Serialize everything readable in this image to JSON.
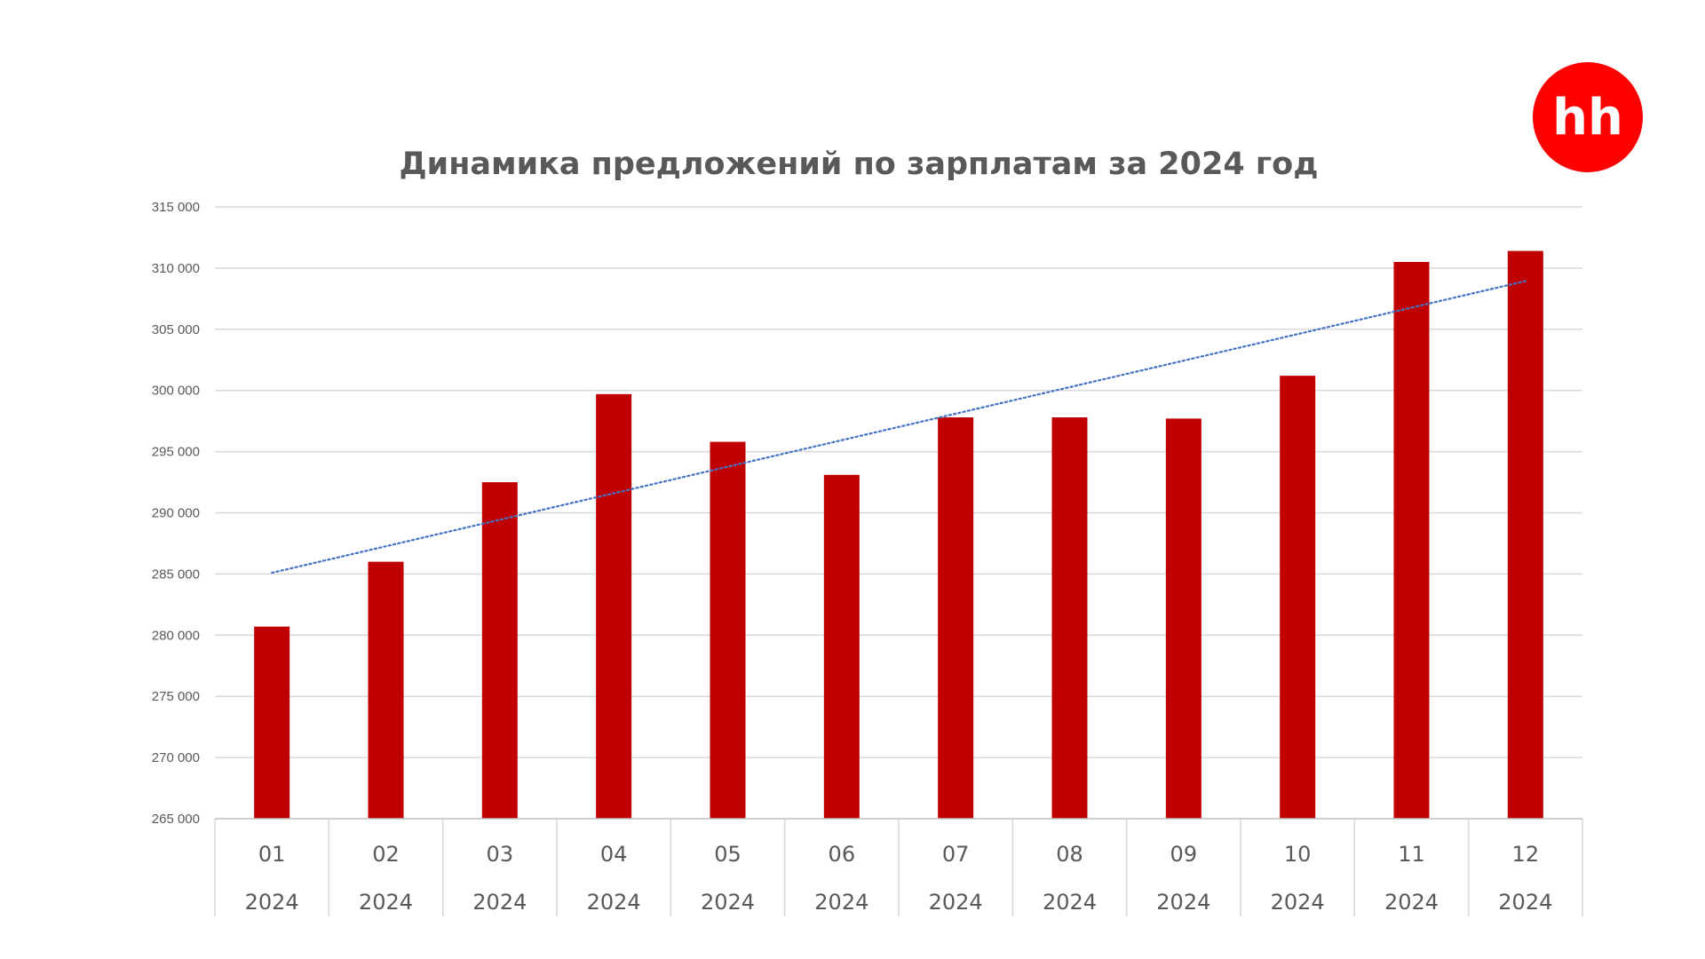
{
  "logo": {
    "text": "hh",
    "color": "#ff0000"
  },
  "chart_data": {
    "type": "bar",
    "title": "Динамика предложений по зарплатам за 2024 год",
    "categories": [
      {
        "month": "01",
        "year": "2024"
      },
      {
        "month": "02",
        "year": "2024"
      },
      {
        "month": "03",
        "year": "2024"
      },
      {
        "month": "04",
        "year": "2024"
      },
      {
        "month": "05",
        "year": "2024"
      },
      {
        "month": "06",
        "year": "2024"
      },
      {
        "month": "07",
        "year": "2024"
      },
      {
        "month": "08",
        "year": "2024"
      },
      {
        "month": "09",
        "year": "2024"
      },
      {
        "month": "10",
        "year": "2024"
      },
      {
        "month": "11",
        "year": "2024"
      },
      {
        "month": "12",
        "year": "2024"
      }
    ],
    "values": [
      280700,
      286000,
      292500,
      299700,
      295800,
      293100,
      297800,
      297800,
      297700,
      301200,
      310500,
      311400
    ],
    "ylim": [
      265000,
      315000
    ],
    "yticks": [
      265000,
      270000,
      275000,
      280000,
      285000,
      290000,
      295000,
      300000,
      305000,
      310000,
      315000
    ],
    "ytick_labels": [
      "265 000",
      "270 000",
      "275 000",
      "280 000",
      "285 000",
      "290 000",
      "295 000",
      "300 000",
      "305 000",
      "310 000",
      "315 000"
    ],
    "trendline": {
      "type": "linear",
      "style": "dotted",
      "color": "#4472c4"
    },
    "bar_color": "#c00000",
    "grid": true,
    "xlabel": "",
    "ylabel": ""
  }
}
